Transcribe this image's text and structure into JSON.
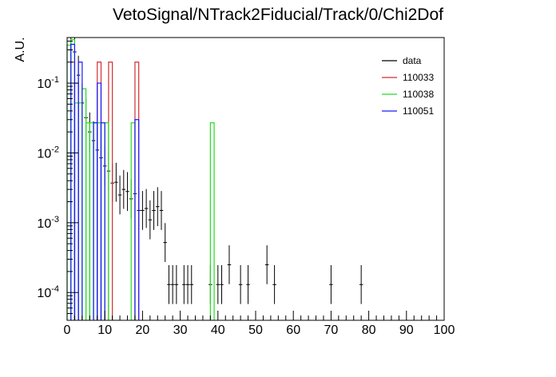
{
  "chart_data": {
    "type": "histogram",
    "title": "VetoSignal/NTrack2Fiducial/Track/0/Chi2Dof",
    "xlabel": "",
    "ylabel": "A.U.",
    "xlim": [
      0,
      100
    ],
    "ylim": [
      4e-05,
      0.45
    ],
    "yscale": "log",
    "grid": false,
    "legend_position": "top-right",
    "x_ticks": [
      "0",
      "10",
      "20",
      "30",
      "40",
      "50",
      "60",
      "70",
      "80",
      "90",
      "100"
    ],
    "y_ticks": [
      {
        "base": "10",
        "exp": "-4",
        "value": 0.0001
      },
      {
        "base": "10",
        "exp": "-3",
        "value": 0.001
      },
      {
        "base": "10",
        "exp": "-2",
        "value": 0.01
      },
      {
        "base": "10",
        "exp": "-1",
        "value": 0.1
      }
    ],
    "series": [
      {
        "name": "data",
        "color": "#000000",
        "style": "points",
        "x": [
          1,
          2,
          3,
          4,
          5,
          6,
          7,
          8,
          9,
          10,
          11,
          12,
          13,
          14,
          15,
          16,
          17,
          18,
          19,
          20,
          21,
          22,
          23,
          24,
          25,
          26,
          27,
          28,
          29,
          31,
          32,
          33,
          38,
          40,
          41,
          43,
          46,
          48,
          53,
          55,
          70,
          78
        ],
        "y": [
          0.3,
          0.28,
          0.13,
          0.052,
          0.032,
          0.02,
          0.015,
          0.011,
          0.0085,
          0.0065,
          0.0055,
          0.0037,
          0.0038,
          0.0025,
          0.003,
          0.0028,
          0.0022,
          0.0026,
          0.0015,
          0.0015,
          0.0016,
          0.0011,
          0.0015,
          0.0017,
          0.0015,
          0.00052,
          0.00013,
          0.00013,
          0.00013,
          0.00013,
          0.00013,
          0.00013,
          0.00013,
          0.00013,
          0.00013,
          0.00025,
          0.00013,
          0.00013,
          0.00025,
          0.00013,
          0.00013,
          0.00013
        ]
      },
      {
        "name": "110033",
        "color": "#d32f2f",
        "style": "step",
        "bins": [
          [
            1,
            2,
            0.2
          ],
          [
            8,
            9,
            0.2
          ],
          [
            11,
            12,
            0.2
          ],
          [
            18,
            19,
            0.2
          ]
        ]
      },
      {
        "name": "110038",
        "color": "#22dd22",
        "style": "step",
        "bins": [
          [
            0,
            1,
            0.35
          ],
          [
            1,
            2,
            0.42
          ],
          [
            2,
            3,
            0.052
          ],
          [
            3,
            4,
            0.052
          ],
          [
            4,
            5,
            0.083
          ],
          [
            5,
            6,
            0.027
          ],
          [
            6,
            7,
            0.027
          ],
          [
            7,
            8,
            0.027
          ],
          [
            8,
            9,
            0.027
          ],
          [
            10,
            11,
            0.027
          ],
          [
            17,
            18,
            0.027
          ],
          [
            38,
            39,
            0.027
          ]
        ]
      },
      {
        "name": "110051",
        "color": "#1a1aff",
        "style": "step",
        "bins": [
          [
            1,
            2,
            0.36
          ],
          [
            2,
            3,
            0.1
          ],
          [
            3,
            4,
            0.2
          ],
          [
            7,
            8,
            0.027
          ],
          [
            8,
            9,
            0.1
          ],
          [
            9,
            10,
            0.027
          ],
          [
            18,
            19,
            0.03
          ]
        ]
      }
    ]
  }
}
